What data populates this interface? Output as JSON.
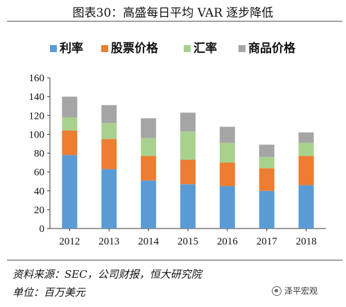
{
  "header": {
    "title": "图表30：高盛每日平均 VAR 逐步降低"
  },
  "footer": {
    "source": "资料来源：SEC，公司财报，恒大研究院",
    "unit": "单位：百万美元",
    "watermark": "泽平宏观"
  },
  "colors": {
    "rate": "#5b9bd5",
    "equity": "#ed7d31",
    "fx": "#a9d18e",
    "commodity": "#a5a5a5"
  },
  "chart_data": {
    "type": "bar",
    "stacked": true,
    "categories": [
      "2012",
      "2013",
      "2014",
      "2015",
      "2016",
      "2017",
      "2018"
    ],
    "series": [
      {
        "name": "利率",
        "values": [
          78,
          63,
          51,
          47,
          45,
          40,
          46
        ]
      },
      {
        "name": "股票价格",
        "values": [
          26,
          32,
          26,
          26,
          25,
          24,
          31
        ]
      },
      {
        "name": "汇率",
        "values": [
          14,
          17,
          19,
          30,
          21,
          12,
          14
        ]
      },
      {
        "name": "商品价格",
        "values": [
          22,
          19,
          21,
          20,
          17,
          13,
          11
        ]
      }
    ],
    "ylim": [
      0,
      160
    ],
    "yticks": [
      "0",
      "20",
      "40",
      "60",
      "80",
      "100",
      "120",
      "140",
      "160"
    ],
    "legend_position": "top",
    "grid": false
  }
}
